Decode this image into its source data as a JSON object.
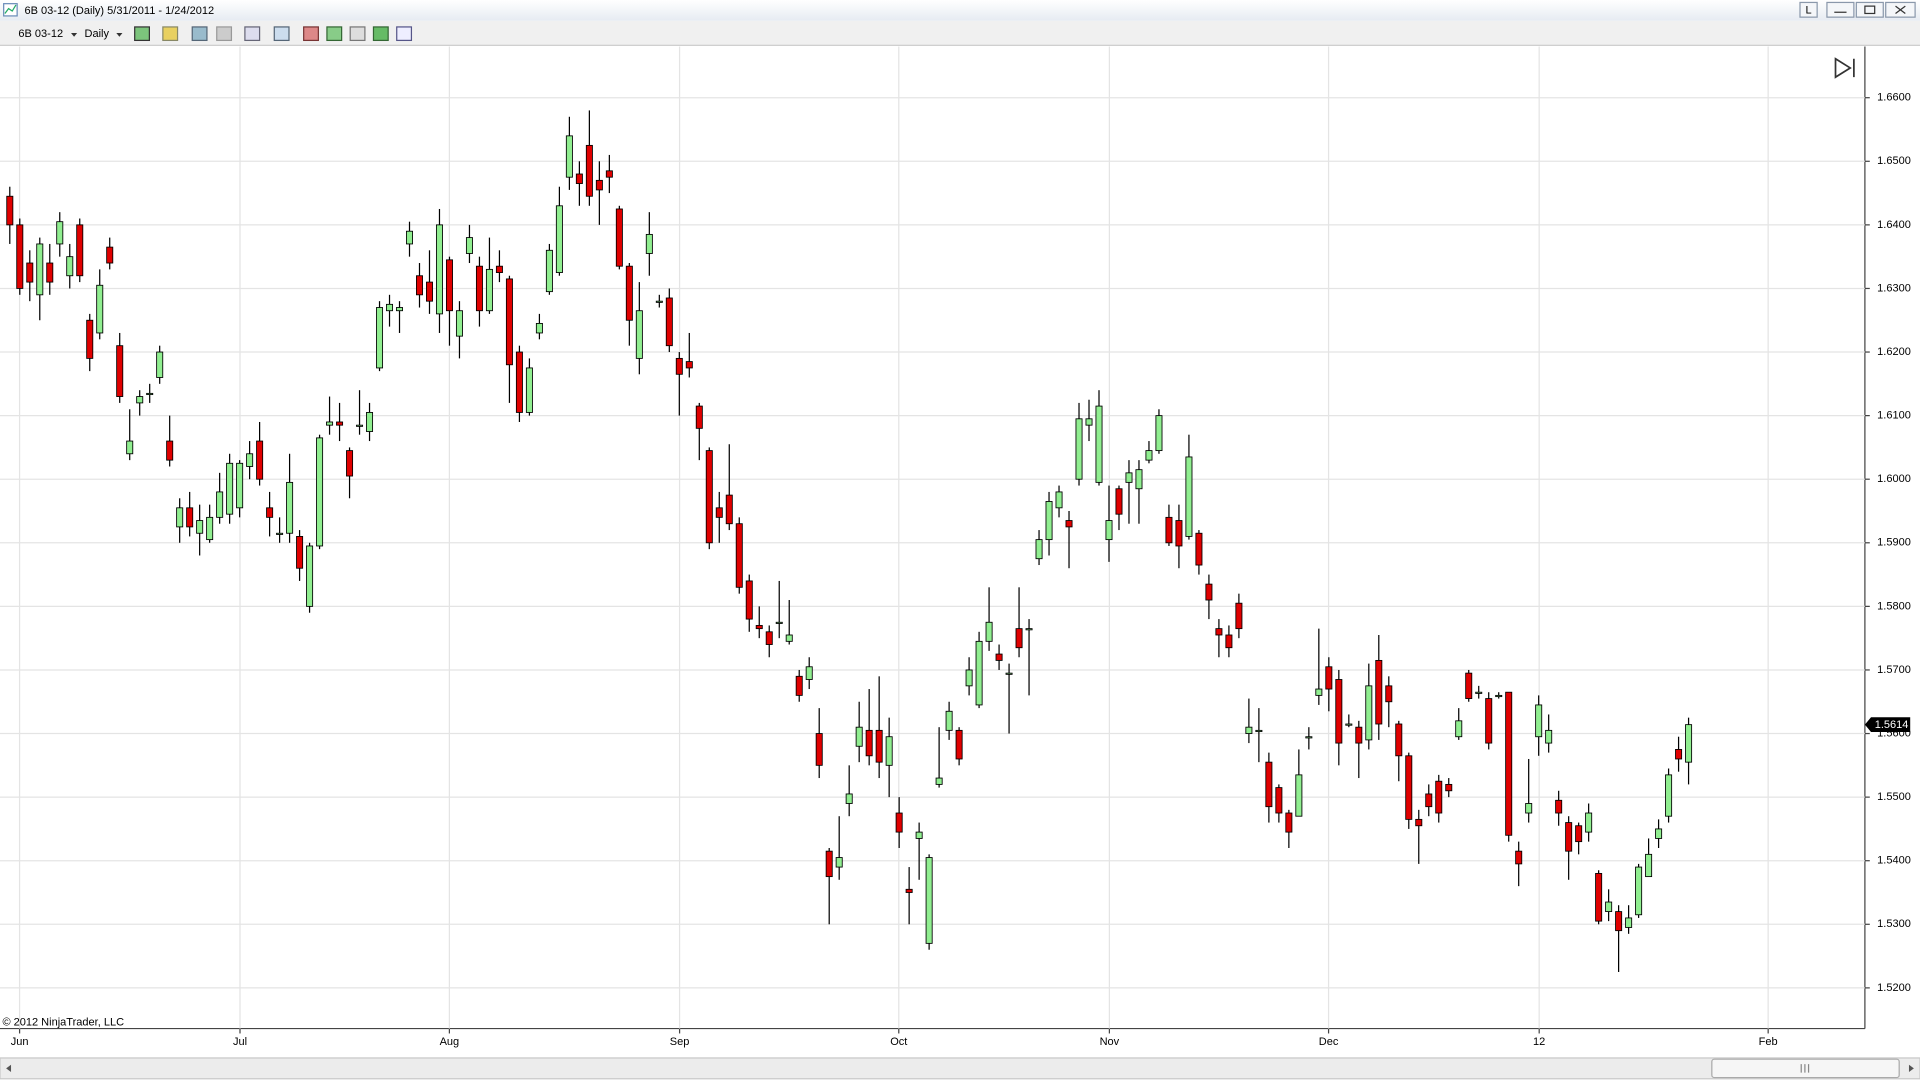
{
  "window": {
    "title": "6B 03-12 (Daily)  5/31/2011 - 1/24/2012",
    "layout_button": "L"
  },
  "toolbar": {
    "instrument": "6B 03-12",
    "period": "Daily"
  },
  "copyright": "© 2012 NinjaTrader, LLC",
  "chart_data": {
    "type": "candlestick",
    "xtick_labels": [
      "Jun",
      "Jul",
      "Aug",
      "Sep",
      "Oct",
      "Nov",
      "Dec",
      "12",
      "Feb"
    ],
    "ylim": [
      1.5136,
      1.6667
    ],
    "yticks": [
      {
        "value": 1.52,
        "label": "1.5200"
      },
      {
        "value": 1.53,
        "label": "1.5300"
      },
      {
        "value": 1.54,
        "label": "1.5400"
      },
      {
        "value": 1.55,
        "label": "1.5500"
      },
      {
        "value": 1.56,
        "label": "1.5600"
      },
      {
        "value": 1.57,
        "label": "1.5700"
      },
      {
        "value": 1.58,
        "label": "1.5800"
      },
      {
        "value": 1.59,
        "label": "1.5900"
      },
      {
        "value": 1.6,
        "label": "1.6000"
      },
      {
        "value": 1.61,
        "label": "1.6100"
      },
      {
        "value": 1.62,
        "label": "1.6200"
      },
      {
        "value": 1.63,
        "label": "1.6300"
      },
      {
        "value": 1.64,
        "label": "1.6400"
      },
      {
        "value": 1.65,
        "label": "1.6500"
      },
      {
        "value": 1.66,
        "label": "1.6600"
      }
    ],
    "grid": true,
    "up_color": "#90ee90",
    "down_color": "#e00000",
    "last_price": 1.5614,
    "open": [
      1.6445,
      1.64,
      1.634,
      1.629,
      1.634,
      1.637,
      1.632,
      1.64,
      1.625,
      1.623,
      1.6365,
      1.621,
      1.604,
      1.612,
      1.6135,
      1.616,
      1.606,
      1.5925,
      1.5955,
      1.5915,
      1.5905,
      1.594,
      1.5945,
      1.5955,
      1.602,
      1.606,
      1.5955,
      1.5915,
      1.5915,
      1.591,
      1.58,
      1.5895,
      1.6085,
      1.609,
      1.6045,
      1.6085,
      1.6075,
      1.6175,
      1.6265,
      1.6265,
      1.637,
      1.632,
      1.631,
      1.626,
      1.6345,
      1.6225,
      1.6355,
      1.6335,
      1.6265,
      1.6335,
      1.6315,
      1.62,
      1.6105,
      1.623,
      1.6295,
      1.6325,
      1.6475,
      1.648,
      1.6525,
      1.647,
      1.6485,
      1.6425,
      1.6335,
      1.619,
      1.6355,
      1.628,
      1.6285,
      1.619,
      1.6185,
      1.6115,
      1.6045,
      1.5955,
      1.5975,
      1.593,
      1.584,
      1.577,
      1.576,
      1.5775,
      1.5745,
      1.569,
      1.5685,
      1.56,
      1.5415,
      1.539,
      1.549,
      1.558,
      1.5605,
      1.5605,
      1.555,
      1.5475,
      1.5355,
      1.5435,
      1.527,
      1.552,
      1.5605,
      1.5605,
      1.5675,
      1.5645,
      1.5745,
      1.5725,
      1.5695,
      1.5765,
      1.5765,
      1.5875,
      1.5905,
      1.5955,
      1.5935,
      1.6,
      1.6085,
      1.5995,
      1.5905,
      1.5985,
      1.5995,
      1.5985,
      1.603,
      1.6045,
      1.594,
      1.5935,
      1.591,
      1.5915,
      1.5835,
      1.5765,
      1.5755,
      1.5805,
      1.56,
      1.5605,
      1.5555,
      1.5515,
      1.5475,
      1.547,
      1.5595,
      1.566,
      1.5705,
      1.5685,
      1.5615,
      1.561,
      1.559,
      1.5715,
      1.5675,
      1.5615,
      1.5565,
      1.5465,
      1.5505,
      1.5525,
      1.552,
      1.5595,
      1.5695,
      1.5665,
      1.5655,
      1.566,
      1.5665,
      1.5415,
      1.5475,
      1.5595,
      1.5585,
      1.5495,
      1.546,
      1.5455,
      1.5445,
      1.538,
      1.532,
      1.532,
      1.5295,
      1.5315,
      1.5375,
      1.5435,
      1.547,
      1.5575,
      1.5555
    ],
    "high": [
      1.646,
      1.641,
      1.636,
      1.638,
      1.637,
      1.642,
      1.637,
      1.641,
      1.626,
      1.633,
      1.638,
      1.623,
      1.611,
      1.614,
      1.615,
      1.621,
      1.61,
      1.597,
      1.598,
      1.596,
      1.596,
      1.601,
      1.604,
      1.603,
      1.606,
      1.609,
      1.598,
      1.594,
      1.604,
      1.592,
      1.59,
      1.607,
      1.613,
      1.612,
      1.605,
      1.614,
      1.612,
      1.628,
      1.629,
      1.628,
      1.6405,
      1.634,
      1.636,
      1.6425,
      1.635,
      1.628,
      1.64,
      1.635,
      1.638,
      1.636,
      1.632,
      1.621,
      1.619,
      1.626,
      1.637,
      1.646,
      1.657,
      1.65,
      1.658,
      1.65,
      1.651,
      1.643,
      1.634,
      1.631,
      1.642,
      1.629,
      1.63,
      1.62,
      1.623,
      1.612,
      1.605,
      1.598,
      1.6055,
      1.594,
      1.585,
      1.58,
      1.577,
      1.584,
      1.581,
      1.57,
      1.572,
      1.564,
      1.542,
      1.547,
      1.555,
      1.565,
      1.567,
      1.569,
      1.5625,
      1.55,
      1.539,
      1.546,
      1.541,
      1.561,
      1.565,
      1.561,
      1.572,
      1.576,
      1.583,
      1.574,
      1.571,
      1.583,
      1.578,
      1.592,
      1.598,
      1.599,
      1.595,
      1.612,
      1.6125,
      1.614,
      1.599,
      1.599,
      1.603,
      1.603,
      1.606,
      1.611,
      1.596,
      1.596,
      1.607,
      1.592,
      1.585,
      1.578,
      1.577,
      1.582,
      1.5655,
      1.564,
      1.557,
      1.552,
      1.548,
      1.5575,
      1.561,
      1.5765,
      1.572,
      1.57,
      1.563,
      1.562,
      1.571,
      1.5755,
      1.569,
      1.562,
      1.557,
      1.548,
      1.552,
      1.5535,
      1.553,
      1.564,
      1.57,
      1.5675,
      1.5665,
      1.5665,
      1.5665,
      1.543,
      1.556,
      1.566,
      1.563,
      1.551,
      1.547,
      1.546,
      1.549,
      1.5385,
      1.5355,
      1.533,
      1.533,
      1.5395,
      1.5435,
      1.5465,
      1.5545,
      1.5595,
      1.5625
    ],
    "low": [
      1.637,
      1.629,
      1.628,
      1.625,
      1.629,
      1.635,
      1.63,
      1.631,
      1.617,
      1.622,
      1.633,
      1.612,
      1.603,
      1.61,
      1.612,
      1.615,
      1.602,
      1.59,
      1.591,
      1.588,
      1.59,
      1.593,
      1.593,
      1.594,
      1.6,
      1.599,
      1.591,
      1.59,
      1.59,
      1.584,
      1.579,
      1.589,
      1.607,
      1.606,
      1.597,
      1.607,
      1.606,
      1.617,
      1.624,
      1.623,
      1.635,
      1.627,
      1.626,
      1.623,
      1.621,
      1.619,
      1.634,
      1.624,
      1.626,
      1.631,
      1.612,
      1.609,
      1.61,
      1.622,
      1.629,
      1.632,
      1.6455,
      1.643,
      1.643,
      1.64,
      1.645,
      1.633,
      1.621,
      1.6165,
      1.632,
      1.627,
      1.62,
      1.61,
      1.616,
      1.603,
      1.589,
      1.59,
      1.592,
      1.582,
      1.576,
      1.575,
      1.572,
      1.575,
      1.574,
      1.565,
      1.567,
      1.553,
      1.53,
      1.537,
      1.547,
      1.5555,
      1.555,
      1.553,
      1.55,
      1.542,
      1.53,
      1.537,
      1.526,
      1.5515,
      1.559,
      1.555,
      1.566,
      1.564,
      1.573,
      1.57,
      1.56,
      1.572,
      1.566,
      1.5865,
      1.588,
      1.594,
      1.586,
      1.599,
      1.606,
      1.599,
      1.587,
      1.592,
      1.593,
      1.593,
      1.6025,
      1.604,
      1.5895,
      1.586,
      1.5905,
      1.585,
      1.578,
      1.572,
      1.572,
      1.575,
      1.5585,
      1.5555,
      1.546,
      1.546,
      1.542,
      1.547,
      1.5575,
      1.5645,
      1.5635,
      1.555,
      1.561,
      1.553,
      1.5575,
      1.559,
      1.561,
      1.5525,
      1.545,
      1.5395,
      1.547,
      1.546,
      1.55,
      1.559,
      1.565,
      1.5655,
      1.5575,
      1.5655,
      1.543,
      1.536,
      1.546,
      1.5565,
      1.557,
      1.5455,
      1.537,
      1.541,
      1.543,
      1.53,
      1.5305,
      1.5225,
      1.5285,
      1.531,
      1.5375,
      1.542,
      1.546,
      1.554,
      1.552
    ],
    "close": [
      1.64,
      1.63,
      1.631,
      1.637,
      1.631,
      1.6405,
      1.635,
      1.632,
      1.619,
      1.6305,
      1.634,
      1.613,
      1.606,
      1.613,
      1.6135,
      1.62,
      1.603,
      1.5955,
      1.5925,
      1.5935,
      1.594,
      1.598,
      1.6025,
      1.6025,
      1.604,
      1.6,
      1.594,
      1.5915,
      1.5995,
      1.586,
      1.5895,
      1.6065,
      1.609,
      1.6085,
      1.6005,
      1.6085,
      1.6105,
      1.627,
      1.6275,
      1.627,
      1.639,
      1.629,
      1.628,
      1.64,
      1.6265,
      1.6265,
      1.638,
      1.6265,
      1.633,
      1.6325,
      1.618,
      1.6105,
      1.6175,
      1.6245,
      1.636,
      1.643,
      1.654,
      1.6465,
      1.6445,
      1.6455,
      1.6475,
      1.6335,
      1.625,
      1.6265,
      1.6385,
      1.628,
      1.621,
      1.6165,
      1.6175,
      1.608,
      1.59,
      1.594,
      1.593,
      1.583,
      1.578,
      1.5765,
      1.574,
      1.5775,
      1.5755,
      1.566,
      1.5705,
      1.555,
      1.5375,
      1.5405,
      1.5505,
      1.561,
      1.5565,
      1.5555,
      1.5595,
      1.5445,
      1.535,
      1.5445,
      1.5405,
      1.553,
      1.5635,
      1.556,
      1.57,
      1.5745,
      1.5775,
      1.5715,
      1.5695,
      1.5735,
      1.5765,
      1.5905,
      1.5965,
      1.598,
      1.5925,
      1.6095,
      1.6095,
      1.6115,
      1.5935,
      1.5945,
      1.601,
      1.6015,
      1.6045,
      1.61,
      1.59,
      1.5895,
      1.6035,
      1.5865,
      1.581,
      1.5755,
      1.5735,
      1.5765,
      1.561,
      1.5605,
      1.5485,
      1.5475,
      1.5445,
      1.5535,
      1.5595,
      1.567,
      1.567,
      1.5585,
      1.5615,
      1.5585,
      1.5675,
      1.5615,
      1.565,
      1.5565,
      1.5465,
      1.5455,
      1.5485,
      1.5475,
      1.551,
      1.562,
      1.5655,
      1.5665,
      1.5585,
      1.566,
      1.544,
      1.5395,
      1.549,
      1.5645,
      1.5605,
      1.5475,
      1.5415,
      1.543,
      1.5475,
      1.5305,
      1.5335,
      1.529,
      1.531,
      1.539,
      1.541,
      1.545,
      1.5535,
      1.556,
      1.5614
    ]
  }
}
